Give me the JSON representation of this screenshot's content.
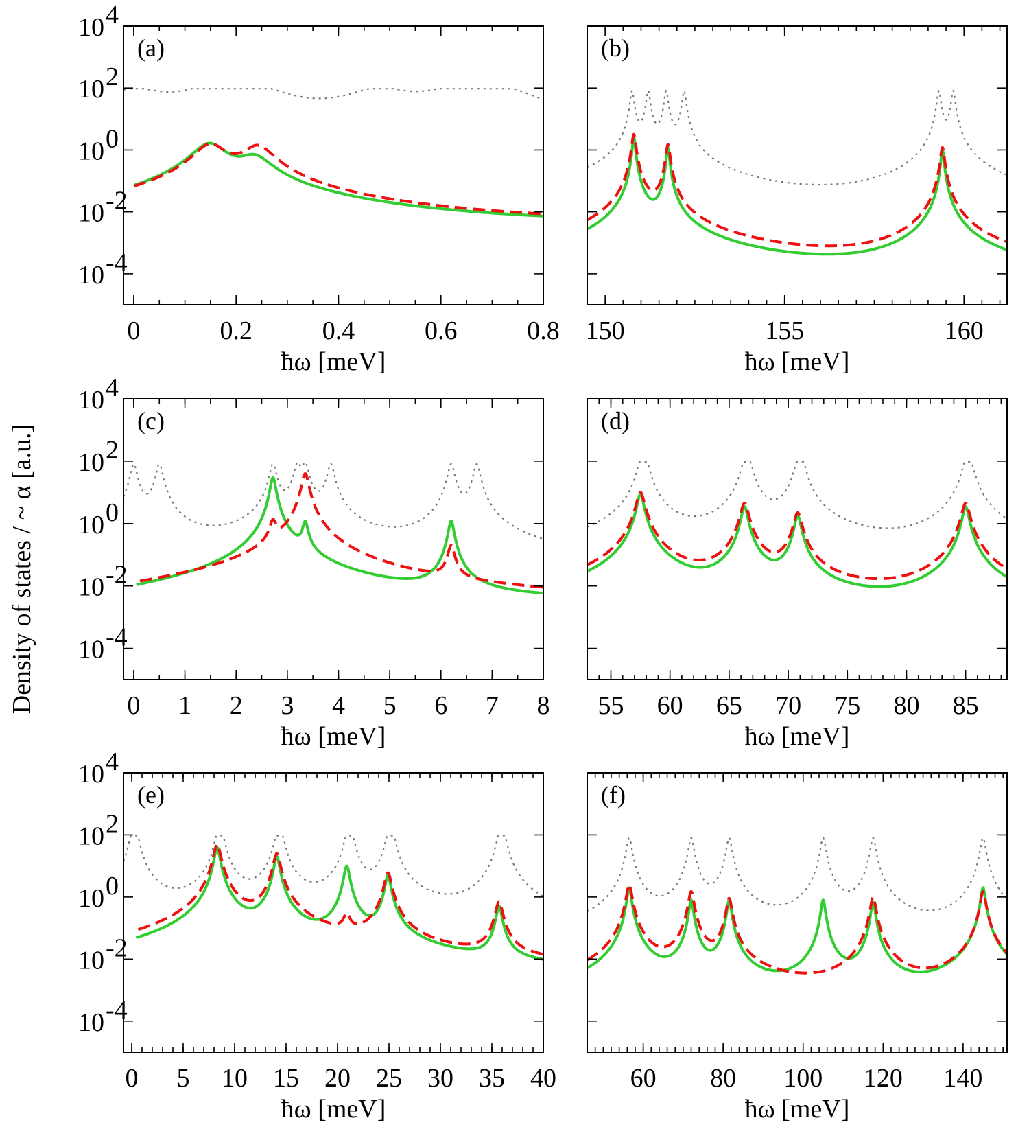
{
  "figure": {
    "ylabel": "Density of states / ~ α [a.u.]",
    "xlabel": "ħω [meV]"
  },
  "colors": {
    "dotted": "#777777",
    "green": "#33cc33",
    "red": "#ee1111"
  },
  "chart_data": [
    {
      "type": "line",
      "panel": "(a)",
      "xlabel": "ħω [meV]",
      "log_y": true,
      "xlim": [
        -0.02,
        0.8
      ],
      "ylim": [
        1e-05,
        10000
      ],
      "xticks": [
        0,
        0.2,
        0.4,
        0.6,
        0.8
      ],
      "xtick_labels": [
        "0",
        "0.2",
        "0.4",
        "0.6",
        "0.8"
      ],
      "minor_x": 0.05,
      "yticks_exp": [
        -4,
        -2,
        0,
        2,
        4
      ],
      "dotted_peaks": [
        0,
        0.15,
        0.24,
        0.48,
        0.63,
        0.72
      ],
      "series": [
        {
          "style": "dotted",
          "peaks": [
            {
              "x": 0.0,
              "y": 80,
              "w": 0.06
            },
            {
              "x": 0.15,
              "y": 80,
              "w": 0.06
            },
            {
              "x": 0.24,
              "y": 80,
              "w": 0.06
            },
            {
              "x": 0.48,
              "y": 80,
              "w": 0.06
            },
            {
              "x": 0.63,
              "y": 80,
              "w": 0.06
            },
            {
              "x": 0.72,
              "y": 80,
              "w": 0.06
            }
          ],
          "base": 0,
          "xmin": -0.02
        },
        {
          "style": "green",
          "peaks": [
            {
              "x": 0.148,
              "y": 1.6,
              "w": 0.03
            },
            {
              "x": 0.235,
              "y": 0.55,
              "w": 0.03
            }
          ],
          "tail": 0.0028,
          "xmin": 0.0
        },
        {
          "style": "red",
          "peaks": [
            {
              "x": 0.15,
              "y": 1.5,
              "w": 0.028
            },
            {
              "x": 0.242,
              "y": 1.3,
              "w": 0.028
            }
          ],
          "tail": 0.003,
          "xmin": 0.0
        }
      ]
    },
    {
      "type": "line",
      "panel": "(b)",
      "xlabel": "ħω [meV]",
      "log_y": true,
      "xlim": [
        149.5,
        161.2
      ],
      "ylim": [
        1e-05,
        10000
      ],
      "xticks": [
        150,
        155,
        160
      ],
      "xtick_labels": [
        "150",
        "155",
        "160"
      ],
      "minor_x": 0.5,
      "yticks_exp": [
        -4,
        -2,
        0,
        2,
        4
      ],
      "series": [
        {
          "style": "dotted",
          "peaks": [
            {
              "x": 150.75,
              "y": 80,
              "w": 0.05
            },
            {
              "x": 151.2,
              "y": 80,
              "w": 0.05
            },
            {
              "x": 151.7,
              "y": 80,
              "w": 0.05
            },
            {
              "x": 152.2,
              "y": 80,
              "w": 0.05
            },
            {
              "x": 159.3,
              "y": 80,
              "w": 0.05
            },
            {
              "x": 159.7,
              "y": 80,
              "w": 0.05
            }
          ],
          "base": 0.002,
          "xmin": 149.5
        },
        {
          "style": "green",
          "peaks": [
            {
              "x": 150.8,
              "y": 2.5,
              "w": 0.04
            },
            {
              "x": 151.75,
              "y": 1.2,
              "w": 0.04
            },
            {
              "x": 159.4,
              "y": 1.0,
              "w": 0.04
            }
          ],
          "base": 4e-05,
          "xmin": 149.5
        },
        {
          "style": "red",
          "peaks": [
            {
              "x": 150.8,
              "y": 3.2,
              "w": 0.05
            },
            {
              "x": 151.75,
              "y": 1.5,
              "w": 0.05
            },
            {
              "x": 159.4,
              "y": 1.2,
              "w": 0.05
            }
          ],
          "base": 4e-05,
          "xmin": 149.5
        }
      ]
    },
    {
      "type": "line",
      "panel": "(c)",
      "xlabel": "ħω [meV]",
      "log_y": true,
      "xlim": [
        -0.2,
        8
      ],
      "ylim": [
        1e-05,
        10000
      ],
      "xticks": [
        0,
        1,
        2,
        3,
        4,
        5,
        6,
        7,
        8
      ],
      "xtick_labels": [
        "0",
        "1",
        "2",
        "3",
        "4",
        "5",
        "6",
        "7",
        "8"
      ],
      "minor_x": 0.5,
      "yticks_exp": [
        -4,
        -2,
        0,
        2,
        4
      ],
      "series": [
        {
          "style": "dotted",
          "peaks": [
            {
              "x": 0.0,
              "y": 80,
              "w": 0.06
            },
            {
              "x": 0.5,
              "y": 80,
              "w": 0.06
            },
            {
              "x": 2.72,
              "y": 80,
              "w": 0.06
            },
            {
              "x": 3.2,
              "y": 80,
              "w": 0.06
            },
            {
              "x": 3.35,
              "y": 80,
              "w": 0.06
            },
            {
              "x": 3.85,
              "y": 80,
              "w": 0.06
            },
            {
              "x": 6.2,
              "y": 80,
              "w": 0.06
            },
            {
              "x": 6.7,
              "y": 80,
              "w": 0.06
            }
          ],
          "base": 0.0005,
          "xmin": -0.2
        },
        {
          "style": "green",
          "peaks": [
            {
              "x": 2.72,
              "y": 30,
              "w": 0.05
            },
            {
              "x": 3.35,
              "y": 1.0,
              "w": 0.05
            },
            {
              "x": 6.2,
              "y": 1.2,
              "w": 0.05
            }
          ],
          "tail": 0.0005,
          "xmin": 0.05
        },
        {
          "style": "red",
          "peaks": [
            {
              "x": 2.72,
              "y": 1.0,
              "w": 0.06
            },
            {
              "x": 3.35,
              "y": 40,
              "w": 0.06
            },
            {
              "x": 6.2,
              "y": 0.18,
              "w": 0.06
            }
          ],
          "tail": 0.0005,
          "xmin": 0.12
        }
      ]
    },
    {
      "type": "line",
      "panel": "(d)",
      "xlabel": "ħω [meV]",
      "log_y": true,
      "xlim": [
        53,
        88.5
      ],
      "ylim": [
        1e-05,
        10000
      ],
      "xticks": [
        55,
        60,
        65,
        70,
        75,
        80,
        85
      ],
      "xtick_labels": [
        "55",
        "60",
        "65",
        "70",
        "75",
        "80",
        "85"
      ],
      "minor_x": 1,
      "yticks_exp": [
        -4,
        -2,
        0,
        2,
        4
      ],
      "series": [
        {
          "style": "dotted",
          "peaks": [
            {
              "x": 57.5,
              "y": 80,
              "w": 0.3
            },
            {
              "x": 58.0,
              "y": 80,
              "w": 0.3
            },
            {
              "x": 66.3,
              "y": 80,
              "w": 0.3
            },
            {
              "x": 66.7,
              "y": 80,
              "w": 0.3
            },
            {
              "x": 70.8,
              "y": 80,
              "w": 0.3
            },
            {
              "x": 71.2,
              "y": 80,
              "w": 0.3
            },
            {
              "x": 85.0,
              "y": 80,
              "w": 0.3
            },
            {
              "x": 85.4,
              "y": 80,
              "w": 0.3
            }
          ],
          "base": 0.0008,
          "xmin": 53
        },
        {
          "style": "green",
          "peaks": [
            {
              "x": 57.5,
              "y": 9,
              "w": 0.25
            },
            {
              "x": 66.3,
              "y": 3.5,
              "w": 0.25
            },
            {
              "x": 70.8,
              "y": 1.8,
              "w": 0.25
            },
            {
              "x": 85.0,
              "y": 3.5,
              "w": 0.25
            }
          ],
          "base": 4e-05,
          "xmin": 53
        },
        {
          "style": "red",
          "peaks": [
            {
              "x": 57.5,
              "y": 10,
              "w": 0.3
            },
            {
              "x": 66.3,
              "y": 4.5,
              "w": 0.3
            },
            {
              "x": 70.8,
              "y": 2.2,
              "w": 0.3
            },
            {
              "x": 85.0,
              "y": 4.5,
              "w": 0.3
            }
          ],
          "base": 4e-05,
          "xmin": 53
        }
      ]
    },
    {
      "type": "line",
      "panel": "(e)",
      "xlabel": "ħω [meV]",
      "log_y": true,
      "xlim": [
        -0.8,
        40
      ],
      "ylim": [
        1e-05,
        10000
      ],
      "xticks": [
        0,
        5,
        10,
        15,
        20,
        25,
        30,
        35,
        40
      ],
      "xtick_labels": [
        "0",
        "5",
        "10",
        "15",
        "20",
        "25",
        "30",
        "35",
        "40"
      ],
      "minor_x": 1,
      "yticks_exp": [
        -4,
        -2,
        0,
        2,
        4
      ],
      "series": [
        {
          "style": "dotted",
          "peaks": [
            {
              "x": 0.0,
              "y": 80,
              "w": 0.3
            },
            {
              "x": 0.5,
              "y": 80,
              "w": 0.3
            },
            {
              "x": 8.3,
              "y": 80,
              "w": 0.3
            },
            {
              "x": 8.8,
              "y": 80,
              "w": 0.3
            },
            {
              "x": 14.1,
              "y": 80,
              "w": 0.3
            },
            {
              "x": 14.6,
              "y": 80,
              "w": 0.3
            },
            {
              "x": 20.9,
              "y": 80,
              "w": 0.3
            },
            {
              "x": 21.4,
              "y": 80,
              "w": 0.3
            },
            {
              "x": 24.9,
              "y": 80,
              "w": 0.3
            },
            {
              "x": 25.4,
              "y": 80,
              "w": 0.3
            },
            {
              "x": 35.7,
              "y": 80,
              "w": 0.3
            },
            {
              "x": 36.2,
              "y": 80,
              "w": 0.3
            }
          ],
          "base": 0.0005,
          "xmin": -0.8
        },
        {
          "style": "green",
          "peaks": [
            {
              "x": 8.3,
              "y": 40,
              "w": 0.25
            },
            {
              "x": 14.1,
              "y": 20,
              "w": 0.25
            },
            {
              "x": 20.9,
              "y": 10,
              "w": 0.25
            },
            {
              "x": 24.9,
              "y": 5,
              "w": 0.25
            },
            {
              "x": 35.7,
              "y": 0.5,
              "w": 0.25
            }
          ],
          "tail": 5e-05,
          "xmin": 0.4
        },
        {
          "style": "red",
          "peaks": [
            {
              "x": 8.3,
              "y": 50,
              "w": 0.3
            },
            {
              "x": 14.1,
              "y": 25,
              "w": 0.3
            },
            {
              "x": 20.9,
              "y": 0.2,
              "w": 0.3
            },
            {
              "x": 24.9,
              "y": 6,
              "w": 0.3
            },
            {
              "x": 35.7,
              "y": 0.7,
              "w": 0.3
            }
          ],
          "tail": 5e-05,
          "xmin": 0.6
        }
      ]
    },
    {
      "type": "line",
      "panel": "(f)",
      "xlabel": "ħω [meV]",
      "log_y": true,
      "xlim": [
        46,
        151
      ],
      "ylim": [
        1e-05,
        10000
      ],
      "xticks": [
        60,
        80,
        100,
        120,
        140
      ],
      "xtick_labels": [
        "60",
        "80",
        "100",
        "120",
        "140"
      ],
      "minor_x": 2,
      "yticks_exp": [
        -4,
        -2,
        0,
        2,
        4
      ],
      "series": [
        {
          "style": "dotted",
          "peaks": [
            {
              "x": 56.5,
              "y": 80,
              "w": 0.6
            },
            {
              "x": 72.0,
              "y": 80,
              "w": 0.6
            },
            {
              "x": 81.5,
              "y": 80,
              "w": 0.6
            },
            {
              "x": 105.0,
              "y": 80,
              "w": 0.6
            },
            {
              "x": 117.5,
              "y": 80,
              "w": 0.6
            },
            {
              "x": 145.0,
              "y": 80,
              "w": 0.6
            }
          ],
          "base": 0.0003,
          "xmin": 46
        },
        {
          "style": "green",
          "peaks": [
            {
              "x": 56.5,
              "y": 2,
              "w": 0.5
            },
            {
              "x": 72.0,
              "y": 0.8,
              "w": 0.5
            },
            {
              "x": 81.5,
              "y": 0.8,
              "w": 0.5
            },
            {
              "x": 105.0,
              "y": 0.8,
              "w": 0.5
            },
            {
              "x": 117.5,
              "y": 0.7,
              "w": 0.5
            },
            {
              "x": 145.0,
              "y": 2,
              "w": 0.5
            }
          ],
          "base": 2e-05,
          "xmin": 46
        },
        {
          "style": "red",
          "peaks": [
            {
              "x": 56.5,
              "y": 2.5,
              "w": 0.6
            },
            {
              "x": 72.0,
              "y": 1.5,
              "w": 0.6
            },
            {
              "x": 81.5,
              "y": 0.9,
              "w": 0.6
            },
            {
              "x": 117.5,
              "y": 1.0,
              "w": 0.6
            },
            {
              "x": 145.0,
              "y": 1.5,
              "w": 0.6
            }
          ],
          "base": 2e-05,
          "xmin": 46
        }
      ]
    }
  ]
}
